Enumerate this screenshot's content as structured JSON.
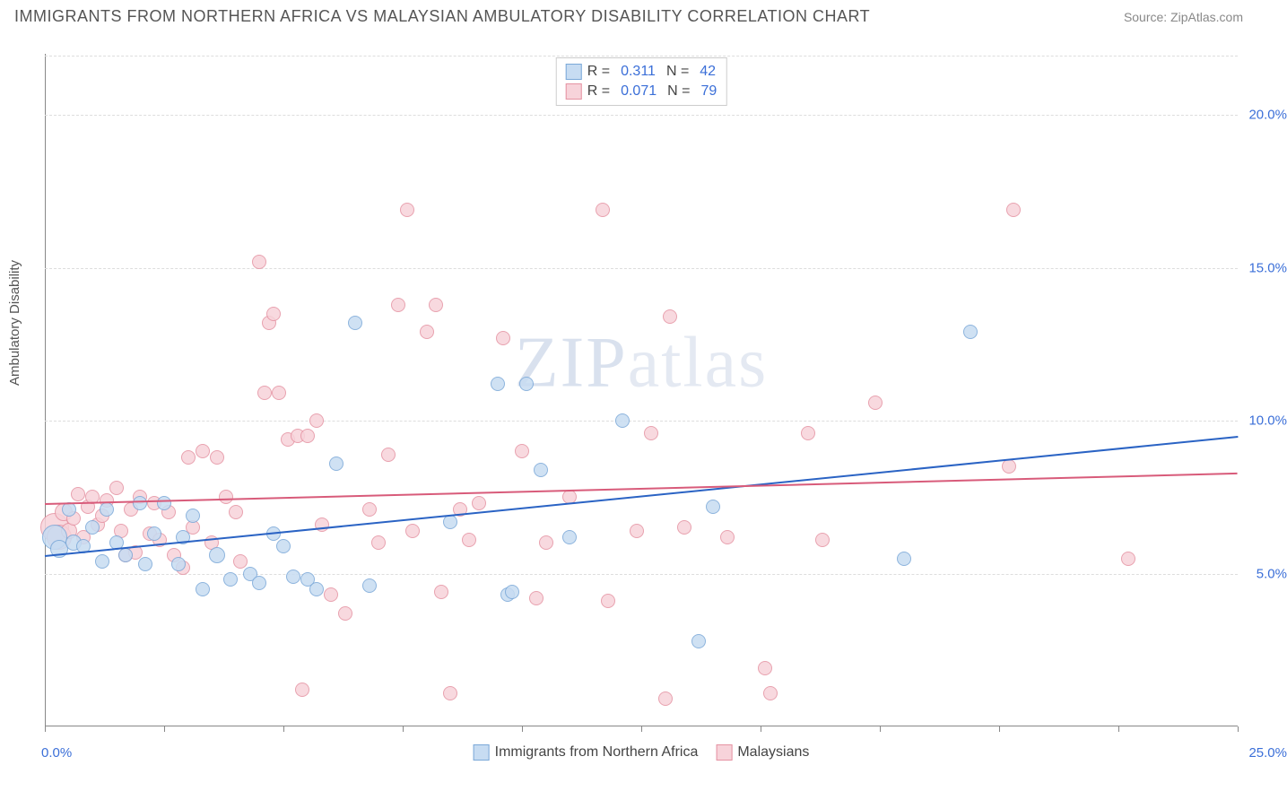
{
  "title": "IMMIGRANTS FROM NORTHERN AFRICA VS MALAYSIAN AMBULATORY DISABILITY CORRELATION CHART",
  "source": "Source: ZipAtlas.com",
  "y_axis_label": "Ambulatory Disability",
  "watermark_a": "ZIP",
  "watermark_b": "atlas",
  "chart": {
    "type": "scatter",
    "xlim": [
      0,
      25
    ],
    "ylim": [
      0,
      22
    ],
    "y_ticks": [
      5,
      10,
      15,
      20
    ],
    "y_tick_labels": [
      "5.0%",
      "10.0%",
      "15.0%",
      "20.0%"
    ],
    "x_ticks": [
      0,
      2.5,
      5,
      7.5,
      10,
      12.5,
      15,
      17.5,
      20,
      22.5,
      25
    ],
    "x_label_first": "0.0%",
    "x_label_last": "25.0%",
    "grid_color": "#dddddd",
    "background_color": "#ffffff"
  },
  "series": {
    "a": {
      "name": "Immigrants from Northern Africa",
      "color_fill": "#c7dcf2",
      "color_stroke": "#7aa8d8",
      "trend_color": "#2a63c4",
      "R_label": "R =",
      "R": "0.311",
      "N_label": "N =",
      "N": "42",
      "trend": {
        "x1": 0,
        "y1": 5.6,
        "x2": 25,
        "y2": 9.5
      },
      "points": [
        {
          "x": 0.2,
          "y": 6.2,
          "r": 14
        },
        {
          "x": 0.3,
          "y": 5.8,
          "r": 10
        },
        {
          "x": 0.5,
          "y": 7.1,
          "r": 8
        },
        {
          "x": 0.6,
          "y": 6.0,
          "r": 9
        },
        {
          "x": 0.8,
          "y": 5.9,
          "r": 8
        },
        {
          "x": 1.0,
          "y": 6.5,
          "r": 8
        },
        {
          "x": 1.2,
          "y": 5.4,
          "r": 8
        },
        {
          "x": 1.3,
          "y": 7.1,
          "r": 8
        },
        {
          "x": 1.5,
          "y": 6.0,
          "r": 8
        },
        {
          "x": 1.7,
          "y": 5.6,
          "r": 8
        },
        {
          "x": 2.0,
          "y": 7.3,
          "r": 8
        },
        {
          "x": 2.1,
          "y": 5.3,
          "r": 8
        },
        {
          "x": 2.5,
          "y": 7.3,
          "r": 8
        },
        {
          "x": 2.8,
          "y": 5.3,
          "r": 8
        },
        {
          "x": 2.9,
          "y": 6.2,
          "r": 8
        },
        {
          "x": 3.3,
          "y": 4.5,
          "r": 8
        },
        {
          "x": 3.6,
          "y": 5.6,
          "r": 9
        },
        {
          "x": 3.9,
          "y": 4.8,
          "r": 8
        },
        {
          "x": 4.3,
          "y": 5.0,
          "r": 8
        },
        {
          "x": 4.5,
          "y": 4.7,
          "r": 8
        },
        {
          "x": 5.0,
          "y": 5.9,
          "r": 8
        },
        {
          "x": 5.2,
          "y": 4.9,
          "r": 8
        },
        {
          "x": 5.5,
          "y": 4.8,
          "r": 8
        },
        {
          "x": 5.7,
          "y": 4.5,
          "r": 8
        },
        {
          "x": 6.1,
          "y": 8.6,
          "r": 8
        },
        {
          "x": 6.5,
          "y": 13.2,
          "r": 8
        },
        {
          "x": 6.8,
          "y": 4.6,
          "r": 8
        },
        {
          "x": 8.5,
          "y": 6.7,
          "r": 8
        },
        {
          "x": 9.5,
          "y": 11.2,
          "r": 8
        },
        {
          "x": 9.7,
          "y": 4.3,
          "r": 8
        },
        {
          "x": 9.8,
          "y": 4.4,
          "r": 8
        },
        {
          "x": 10.1,
          "y": 11.2,
          "r": 8
        },
        {
          "x": 10.4,
          "y": 8.4,
          "r": 8
        },
        {
          "x": 11.0,
          "y": 6.2,
          "r": 8
        },
        {
          "x": 12.1,
          "y": 10.0,
          "r": 8
        },
        {
          "x": 13.7,
          "y": 2.8,
          "r": 8
        },
        {
          "x": 14.0,
          "y": 7.2,
          "r": 8
        },
        {
          "x": 18.0,
          "y": 5.5,
          "r": 8
        },
        {
          "x": 19.4,
          "y": 12.9,
          "r": 8
        },
        {
          "x": 2.3,
          "y": 6.3,
          "r": 8
        },
        {
          "x": 3.1,
          "y": 6.9,
          "r": 8
        },
        {
          "x": 4.8,
          "y": 6.3,
          "r": 8
        }
      ]
    },
    "b": {
      "name": "Malaysians",
      "color_fill": "#f7d3da",
      "color_stroke": "#e592a2",
      "trend_color": "#d85b7a",
      "R_label": "R =",
      "R": "0.071",
      "N_label": "N =",
      "N": "79",
      "trend": {
        "x1": 0,
        "y1": 7.3,
        "x2": 25,
        "y2": 8.3
      },
      "points": [
        {
          "x": 0.2,
          "y": 6.5,
          "r": 16
        },
        {
          "x": 0.3,
          "y": 6.2,
          "r": 14
        },
        {
          "x": 0.4,
          "y": 7.0,
          "r": 10
        },
        {
          "x": 0.5,
          "y": 6.4,
          "r": 9
        },
        {
          "x": 0.6,
          "y": 6.8,
          "r": 8
        },
        {
          "x": 0.7,
          "y": 7.6,
          "r": 8
        },
        {
          "x": 0.8,
          "y": 6.2,
          "r": 8
        },
        {
          "x": 0.9,
          "y": 7.2,
          "r": 8
        },
        {
          "x": 1.0,
          "y": 7.5,
          "r": 8
        },
        {
          "x": 1.1,
          "y": 6.6,
          "r": 8
        },
        {
          "x": 1.2,
          "y": 6.9,
          "r": 8
        },
        {
          "x": 1.3,
          "y": 7.4,
          "r": 8
        },
        {
          "x": 1.5,
          "y": 7.8,
          "r": 8
        },
        {
          "x": 1.6,
          "y": 6.4,
          "r": 8
        },
        {
          "x": 1.7,
          "y": 5.6,
          "r": 8
        },
        {
          "x": 1.8,
          "y": 7.1,
          "r": 8
        },
        {
          "x": 1.9,
          "y": 5.7,
          "r": 8
        },
        {
          "x": 2.0,
          "y": 7.5,
          "r": 8
        },
        {
          "x": 2.2,
          "y": 6.3,
          "r": 8
        },
        {
          "x": 2.3,
          "y": 7.3,
          "r": 8
        },
        {
          "x": 2.4,
          "y": 6.1,
          "r": 8
        },
        {
          "x": 2.6,
          "y": 7.0,
          "r": 8
        },
        {
          "x": 2.7,
          "y": 5.6,
          "r": 8
        },
        {
          "x": 3.0,
          "y": 8.8,
          "r": 8
        },
        {
          "x": 3.3,
          "y": 9.0,
          "r": 8
        },
        {
          "x": 3.5,
          "y": 6.0,
          "r": 8
        },
        {
          "x": 3.6,
          "y": 8.8,
          "r": 8
        },
        {
          "x": 3.8,
          "y": 7.5,
          "r": 8
        },
        {
          "x": 4.1,
          "y": 5.4,
          "r": 8
        },
        {
          "x": 4.5,
          "y": 15.2,
          "r": 8
        },
        {
          "x": 4.6,
          "y": 10.9,
          "r": 8
        },
        {
          "x": 4.7,
          "y": 13.2,
          "r": 8
        },
        {
          "x": 4.8,
          "y": 13.5,
          "r": 8
        },
        {
          "x": 4.9,
          "y": 10.9,
          "r": 8
        },
        {
          "x": 5.1,
          "y": 9.4,
          "r": 8
        },
        {
          "x": 5.3,
          "y": 9.5,
          "r": 8
        },
        {
          "x": 5.4,
          "y": 1.2,
          "r": 8
        },
        {
          "x": 5.5,
          "y": 9.5,
          "r": 8
        },
        {
          "x": 5.7,
          "y": 10.0,
          "r": 8
        },
        {
          "x": 5.8,
          "y": 6.6,
          "r": 8
        },
        {
          "x": 6.0,
          "y": 4.3,
          "r": 8
        },
        {
          "x": 6.3,
          "y": 3.7,
          "r": 8
        },
        {
          "x": 6.8,
          "y": 7.1,
          "r": 8
        },
        {
          "x": 7.0,
          "y": 6.0,
          "r": 8
        },
        {
          "x": 7.2,
          "y": 8.9,
          "r": 8
        },
        {
          "x": 7.4,
          "y": 13.8,
          "r": 8
        },
        {
          "x": 7.6,
          "y": 16.9,
          "r": 8
        },
        {
          "x": 7.7,
          "y": 6.4,
          "r": 8
        },
        {
          "x": 8.0,
          "y": 12.9,
          "r": 8
        },
        {
          "x": 8.2,
          "y": 13.8,
          "r": 8
        },
        {
          "x": 8.3,
          "y": 4.4,
          "r": 8
        },
        {
          "x": 8.5,
          "y": 1.1,
          "r": 8
        },
        {
          "x": 8.7,
          "y": 7.1,
          "r": 8
        },
        {
          "x": 8.9,
          "y": 6.1,
          "r": 8
        },
        {
          "x": 9.1,
          "y": 7.3,
          "r": 8
        },
        {
          "x": 9.6,
          "y": 12.7,
          "r": 8
        },
        {
          "x": 10.0,
          "y": 9.0,
          "r": 8
        },
        {
          "x": 10.3,
          "y": 4.2,
          "r": 8
        },
        {
          "x": 10.5,
          "y": 6.0,
          "r": 8
        },
        {
          "x": 11.0,
          "y": 7.5,
          "r": 8
        },
        {
          "x": 11.7,
          "y": 16.9,
          "r": 8
        },
        {
          "x": 11.8,
          "y": 4.1,
          "r": 8
        },
        {
          "x": 12.4,
          "y": 6.4,
          "r": 8
        },
        {
          "x": 12.7,
          "y": 9.6,
          "r": 8
        },
        {
          "x": 13.0,
          "y": 0.9,
          "r": 8
        },
        {
          "x": 13.1,
          "y": 13.4,
          "r": 8
        },
        {
          "x": 13.4,
          "y": 6.5,
          "r": 8
        },
        {
          "x": 14.3,
          "y": 6.2,
          "r": 8
        },
        {
          "x": 15.1,
          "y": 1.9,
          "r": 8
        },
        {
          "x": 15.2,
          "y": 1.1,
          "r": 8
        },
        {
          "x": 16.0,
          "y": 9.6,
          "r": 8
        },
        {
          "x": 16.3,
          "y": 6.1,
          "r": 8
        },
        {
          "x": 17.4,
          "y": 10.6,
          "r": 8
        },
        {
          "x": 20.2,
          "y": 8.5,
          "r": 8
        },
        {
          "x": 20.3,
          "y": 16.9,
          "r": 8
        },
        {
          "x": 22.7,
          "y": 5.5,
          "r": 8
        },
        {
          "x": 3.1,
          "y": 6.5,
          "r": 8
        },
        {
          "x": 4.0,
          "y": 7.0,
          "r": 8
        },
        {
          "x": 2.9,
          "y": 5.2,
          "r": 8
        }
      ]
    }
  }
}
